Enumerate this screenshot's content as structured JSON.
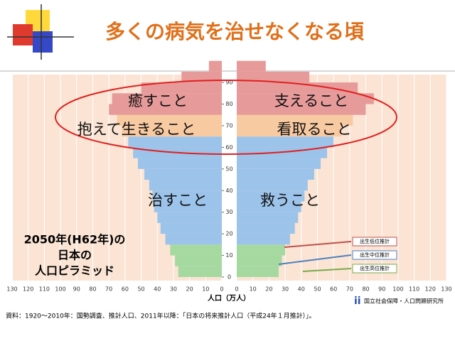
{
  "header": {
    "title": "多くの病気を治せなくなる頃"
  },
  "chart_data": {
    "type": "pyramid",
    "x_label": "人口（万人）",
    "ages": [
      0,
      5,
      10,
      15,
      20,
      25,
      30,
      35,
      40,
      45,
      50,
      55,
      60,
      65,
      70,
      75,
      80,
      85,
      90,
      95
    ],
    "series": [
      {
        "values": [
          27,
          29,
          32,
          35,
          38,
          40,
          42,
          43,
          45,
          48,
          52,
          55,
          58,
          62,
          65,
          70,
          68,
          50,
          25,
          8
        ]
      },
      {
        "values": [
          26,
          28,
          30,
          33,
          36,
          38,
          40,
          42,
          44,
          48,
          52,
          56,
          60,
          65,
          72,
          80,
          85,
          75,
          45,
          18
        ]
      }
    ],
    "band_colors": [
      {
        "from_age": 0,
        "color": "#a6d9a0"
      },
      {
        "from_age": 15,
        "color": "#9cc3ea"
      },
      {
        "from_age": 65,
        "color": "#f8caa2"
      },
      {
        "from_age": 75,
        "color": "#e79a9a"
      }
    ],
    "xlim": [
      0,
      130
    ],
    "xticks": [
      0,
      10,
      20,
      30,
      40,
      50,
      60,
      70,
      80,
      90,
      100,
      110,
      120,
      130
    ],
    "ylim": [
      0,
      92
    ],
    "yticks": [
      0,
      10,
      20,
      30,
      40,
      50,
      60,
      70,
      80,
      90
    ],
    "grid": true,
    "annotations": [
      "癒すこと",
      "支えること",
      "抱えて生きること",
      "看取ること",
      "治すこと",
      "救うこと"
    ],
    "caption": [
      "2050年(H62年)の",
      "日本の",
      "人口ピラミッド"
    ],
    "projections": [
      {
        "name": "出生低位推計",
        "color": "#c0504d"
      },
      {
        "name": "出生中位推計",
        "color": "#4f81bd"
      },
      {
        "name": "出生高位推計",
        "color": "#7aaa4a"
      }
    ]
  },
  "footer": {
    "source": "資料：1920～2010年：国勢調査、推計人口、2011年以降：「日本の将来推計人口（平成24年１月推計）」。",
    "logo": "国立社会保障・人口問題研究所"
  }
}
